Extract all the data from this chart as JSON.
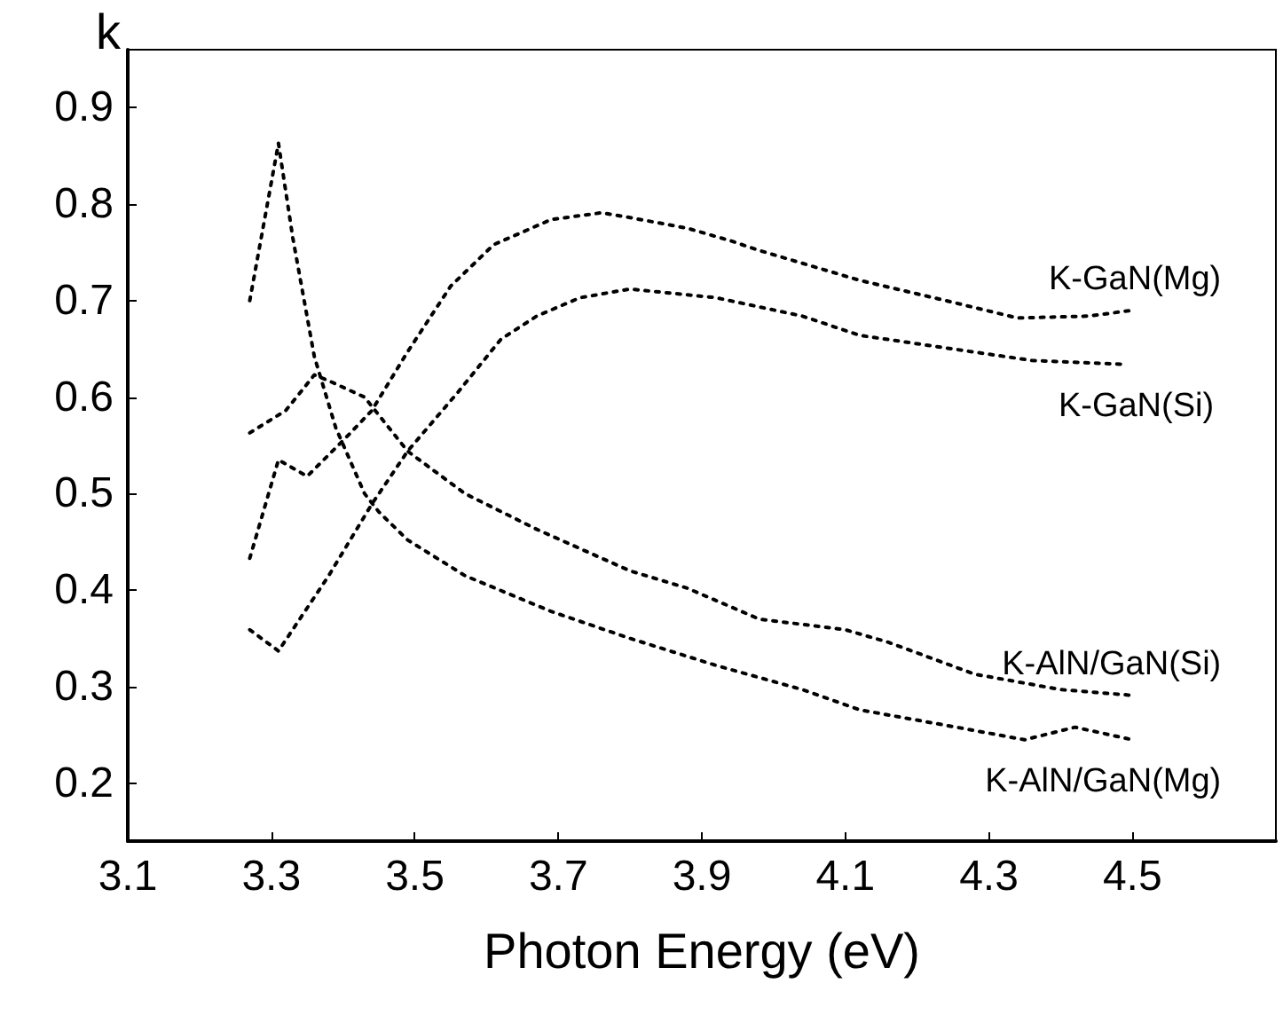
{
  "chart_data": {
    "type": "line",
    "xlabel": "Photon Energy (eV)",
    "ylabel": "k",
    "xlim": [
      3.1,
      4.7
    ],
    "ylim": [
      0.14,
      0.96
    ],
    "xticks": [
      3.1,
      3.3,
      3.5,
      3.7,
      3.9,
      4.1,
      4.3,
      4.5
    ],
    "yticks": [
      0.2,
      0.3,
      0.4,
      0.5,
      0.6,
      0.7,
      0.8,
      0.9
    ],
    "grid": false,
    "marker": "none",
    "line_style": "dotted",
    "series": [
      {
        "name": "K-GaN(Mg)",
        "color": "#000000",
        "x": [
          3.27,
          3.31,
          3.35,
          3.4,
          3.44,
          3.49,
          3.55,
          3.61,
          3.69,
          3.76,
          3.8,
          3.88,
          3.94,
          3.98,
          4.12,
          4.24,
          4.34,
          4.44,
          4.5
        ],
        "values": [
          0.433,
          0.535,
          0.518,
          0.555,
          0.586,
          0.647,
          0.715,
          0.758,
          0.784,
          0.791,
          0.786,
          0.775,
          0.762,
          0.752,
          0.721,
          0.7,
          0.682,
          0.684,
          0.69
        ]
      },
      {
        "name": "K-GaN(Si)",
        "color": "#000000",
        "x": [
          3.27,
          3.31,
          3.38,
          3.44,
          3.49,
          3.56,
          3.62,
          3.67,
          3.73,
          3.8,
          3.92,
          4.04,
          4.12,
          4.24,
          4.36,
          4.49
        ],
        "values": [
          0.359,
          0.337,
          0.415,
          0.489,
          0.544,
          0.605,
          0.66,
          0.684,
          0.703,
          0.712,
          0.703,
          0.684,
          0.664,
          0.651,
          0.638,
          0.634
        ]
      },
      {
        "name": "K-AlN/GaN(Si)",
        "color": "#000000",
        "x": [
          3.27,
          3.32,
          3.36,
          3.38,
          3.43,
          3.49,
          3.57,
          3.67,
          3.8,
          3.88,
          3.98,
          4.1,
          4.16,
          4.28,
          4.4,
          4.5
        ],
        "values": [
          0.563,
          0.586,
          0.623,
          0.617,
          0.6,
          0.544,
          0.5,
          0.463,
          0.42,
          0.402,
          0.37,
          0.359,
          0.346,
          0.313,
          0.297,
          0.291
        ]
      },
      {
        "name": "K-AlN/GaN(Mg)",
        "color": "#000000",
        "x": [
          3.27,
          3.31,
          3.33,
          3.36,
          3.39,
          3.43,
          3.45,
          3.49,
          3.57,
          3.69,
          3.8,
          3.92,
          4.04,
          4.12,
          4.24,
          4.35,
          4.42,
          4.5
        ],
        "values": [
          0.7,
          0.863,
          0.765,
          0.642,
          0.568,
          0.5,
          0.481,
          0.452,
          0.415,
          0.378,
          0.35,
          0.322,
          0.297,
          0.276,
          0.26,
          0.245,
          0.258,
          0.245
        ]
      }
    ]
  }
}
